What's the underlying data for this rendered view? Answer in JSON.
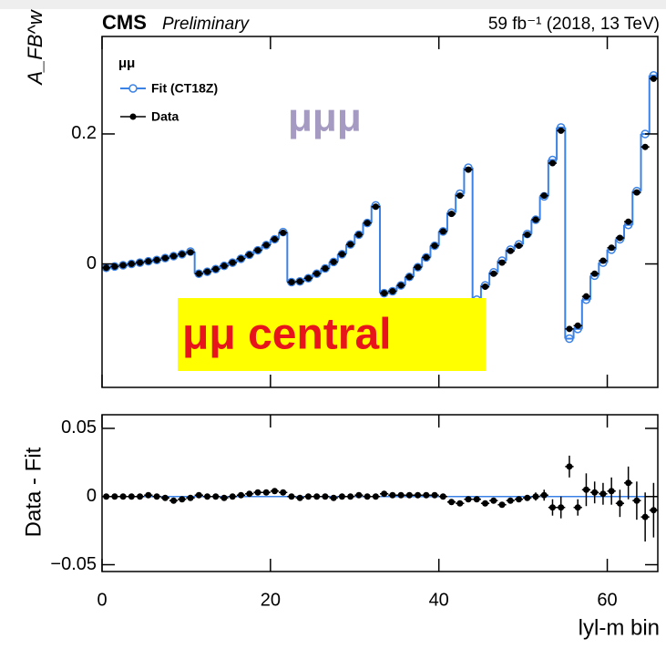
{
  "chart_data": [
    {
      "type": "step",
      "experiment": "CMS",
      "status": "Preliminary",
      "luminosity": "59 fb⁻¹ (2018, 13 TeV)",
      "ylabel": "A_FB^w",
      "legend_title": "μμ",
      "annotation": "μμ central",
      "annotation_2": "μμμ",
      "xlim": [
        0,
        66
      ],
      "xticks": [
        0,
        20,
        40,
        60
      ],
      "ylim": [
        -0.19,
        0.35
      ],
      "yticks": [
        0,
        0.2
      ],
      "x": [
        0.5,
        1.5,
        2.5,
        3.5,
        4.5,
        5.5,
        6.5,
        7.5,
        8.5,
        9.5,
        10.5,
        11.5,
        12.5,
        13.5,
        14.5,
        15.5,
        16.5,
        17.5,
        18.5,
        19.5,
        20.5,
        21.5,
        22.5,
        23.5,
        24.5,
        25.5,
        26.5,
        27.5,
        28.5,
        29.5,
        30.5,
        31.5,
        32.5,
        33.5,
        34.5,
        35.5,
        36.5,
        37.5,
        38.5,
        39.5,
        40.5,
        41.5,
        42.5,
        43.5,
        44.5,
        45.5,
        46.5,
        47.5,
        48.5,
        49.5,
        50.5,
        51.5,
        52.5,
        53.5,
        54.5,
        55.5,
        56.5,
        57.5,
        58.5,
        59.5,
        60.5,
        61.5,
        62.5,
        63.5,
        64.5,
        65.5
      ],
      "series": [
        {
          "name": "Fit (CT18Z)",
          "color": "#3b82e6",
          "values": [
            -0.006,
            -0.004,
            -0.002,
            0,
            0.002,
            0.004,
            0.006,
            0.009,
            0.012,
            0.015,
            0.019,
            -0.015,
            -0.012,
            -0.008,
            -0.003,
            0.002,
            0.008,
            0.014,
            0.021,
            0.029,
            0.038,
            0.049,
            -0.028,
            -0.027,
            -0.022,
            -0.015,
            -0.007,
            0.003,
            0.015,
            0.03,
            0.045,
            0.063,
            0.09,
            -0.045,
            -0.042,
            -0.033,
            -0.02,
            -0.005,
            0.01,
            0.028,
            0.05,
            0.079,
            0.108,
            0.148,
            -0.055,
            -0.033,
            -0.013,
            0.005,
            0.022,
            0.03,
            0.046,
            0.068,
            0.104,
            0.16,
            0.21,
            -0.115,
            -0.1,
            -0.055,
            -0.018,
            0.002,
            0.022,
            0.038,
            0.06,
            0.112,
            0.2,
            0.29
          ]
        },
        {
          "name": "Data",
          "color": "#000000",
          "values": [
            -0.006,
            -0.004,
            -0.002,
            0,
            0.002,
            0.004,
            0.006,
            0.009,
            0.012,
            0.015,
            0.018,
            -0.015,
            -0.012,
            -0.008,
            -0.003,
            0.002,
            0.008,
            0.014,
            0.021,
            0.029,
            0.038,
            0.048,
            -0.028,
            -0.027,
            -0.022,
            -0.015,
            -0.007,
            0.003,
            0.015,
            0.03,
            0.045,
            0.063,
            0.088,
            -0.045,
            -0.042,
            -0.033,
            -0.02,
            -0.005,
            0.01,
            0.028,
            0.05,
            0.077,
            0.105,
            0.145,
            -0.058,
            -0.035,
            -0.015,
            0.002,
            0.02,
            0.028,
            0.045,
            0.068,
            0.105,
            0.155,
            0.205,
            -0.1,
            -0.095,
            -0.05,
            -0.015,
            0.005,
            0.025,
            0.04,
            0.065,
            0.11,
            0.18,
            0.285
          ]
        }
      ]
    },
    {
      "type": "errorbar",
      "ylabel": "Data - Fit",
      "xlabel": "lyl-m bin",
      "xlim": [
        0,
        66
      ],
      "xticks": [
        0,
        20,
        40,
        60
      ],
      "ylim": [
        -0.055,
        0.06
      ],
      "yticks": [
        {
          "value": -0.05,
          "label": "−0.05"
        },
        0,
        0.05
      ],
      "x": [
        0.5,
        1.5,
        2.5,
        3.5,
        4.5,
        5.5,
        6.5,
        7.5,
        8.5,
        9.5,
        10.5,
        11.5,
        12.5,
        13.5,
        14.5,
        15.5,
        16.5,
        17.5,
        18.5,
        19.5,
        20.5,
        21.5,
        22.5,
        23.5,
        24.5,
        25.5,
        26.5,
        27.5,
        28.5,
        29.5,
        30.5,
        31.5,
        32.5,
        33.5,
        34.5,
        35.5,
        36.5,
        37.5,
        38.5,
        39.5,
        40.5,
        41.5,
        42.5,
        43.5,
        44.5,
        45.5,
        46.5,
        47.5,
        48.5,
        49.5,
        50.5,
        51.5,
        52.5,
        53.5,
        54.5,
        55.5,
        56.5,
        57.5,
        58.5,
        59.5,
        60.5,
        61.5,
        62.5,
        63.5,
        64.5,
        65.5
      ],
      "color": "#000000",
      "line_color": "#3b82e6",
      "values": [
        0,
        0,
        0,
        0,
        0,
        0.001,
        0,
        -0.001,
        -0.003,
        -0.002,
        -0.001,
        0.001,
        0,
        0,
        -0.001,
        0,
        0.001,
        0.002,
        0.003,
        0.003,
        0.004,
        0.003,
        0,
        -0.001,
        0,
        0,
        0,
        -0.001,
        0,
        0,
        0.001,
        0,
        0,
        0.002,
        0.001,
        0.001,
        0.001,
        0.001,
        0.001,
        0.001,
        0,
        -0.004,
        -0.005,
        -0.002,
        -0.002,
        -0.005,
        -0.003,
        -0.006,
        -0.003,
        -0.002,
        -0.001,
        0,
        0.001,
        -0.008,
        -0.008,
        0.022,
        -0.008,
        0.005,
        0.003,
        0.002,
        0.004,
        -0.005,
        0.01,
        -0.003,
        -0.015,
        -0.01
      ],
      "errors": [
        0.002,
        0.002,
        0.002,
        0.002,
        0.002,
        0.002,
        0.002,
        0.002,
        0.002,
        0.002,
        0.002,
        0.002,
        0.002,
        0.002,
        0.002,
        0.002,
        0.002,
        0.002,
        0.002,
        0.002,
        0.002,
        0.002,
        0.002,
        0.002,
        0.002,
        0.002,
        0.002,
        0.002,
        0.002,
        0.002,
        0.002,
        0.002,
        0.002,
        0.002,
        0.002,
        0.002,
        0.002,
        0.002,
        0.002,
        0.002,
        0.002,
        0.002,
        0.002,
        0.002,
        0.002,
        0.002,
        0.002,
        0.002,
        0.002,
        0.002,
        0.002,
        0.003,
        0.004,
        0.006,
        0.008,
        0.008,
        0.006,
        0.012,
        0.008,
        0.008,
        0.01,
        0.01,
        0.012,
        0.014,
        0.018,
        0.02
      ]
    }
  ]
}
